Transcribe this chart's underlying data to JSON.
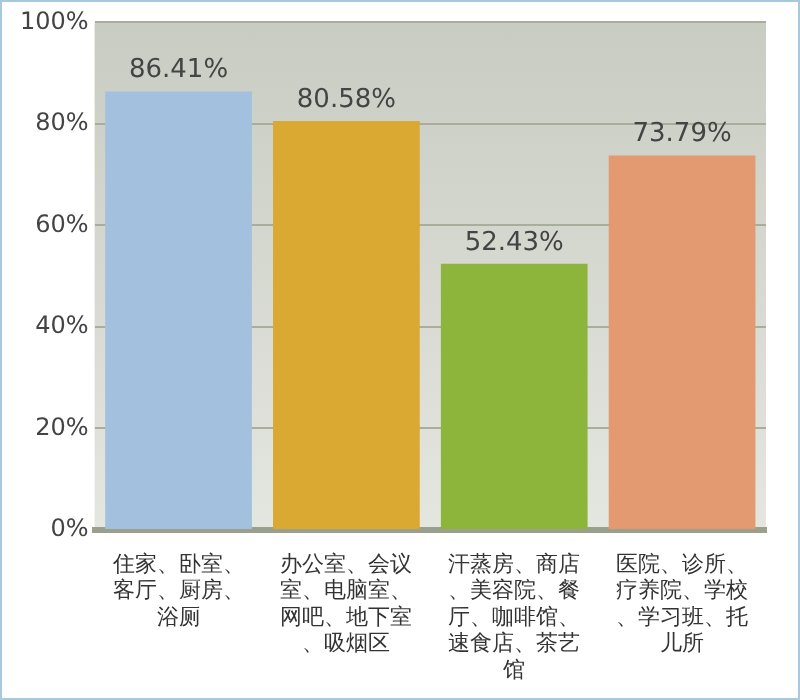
{
  "chart_data": {
    "type": "bar",
    "categories": [
      "住家、卧室、客厅、厨房、浴厕",
      "办公室、会议室、电脑室、网吧、地下室、吸烟区",
      "汗蒸房、商店、美容院、餐厅、咖啡馆、速食店、茶艺馆",
      "医院、诊所、疗养院、学校、学习班、托儿所"
    ],
    "values": [
      86.41,
      80.58,
      52.43,
      73.79
    ],
    "colors": [
      "#a3c0de",
      "#d9a932",
      "#8db53c",
      "#e39a70"
    ],
    "ylim": [
      0,
      100
    ],
    "yticks": [
      {
        "value": 0,
        "label": "0%"
      },
      {
        "value": 20,
        "label": "20%"
      },
      {
        "value": 40,
        "label": "40%"
      },
      {
        "value": 60,
        "label": "60%"
      },
      {
        "value": 80,
        "label": "80%"
      },
      {
        "value": 100,
        "label": "100%"
      }
    ],
    "value_labels": [
      "86.41%",
      "80.58%",
      "52.43%",
      "73.79%"
    ],
    "grid": "y"
  }
}
